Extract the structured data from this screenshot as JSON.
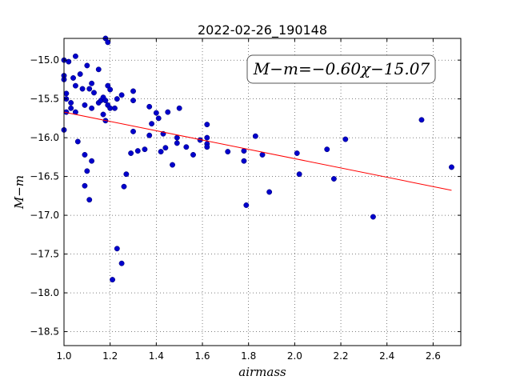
{
  "chart_data": {
    "type": "scatter",
    "title": "2022-02-26_190148",
    "xlabel": "airmass",
    "ylabel": "M−m",
    "xlim": [
      1.0,
      2.72
    ],
    "ylim": [
      -18.68,
      -14.72
    ],
    "y_inverted": false,
    "grid": true,
    "x_ticks": [
      1.0,
      1.2,
      1.4,
      1.6,
      1.8,
      2.0,
      2.2,
      2.4,
      2.6
    ],
    "x_tick_labels": [
      "1.0",
      "1.2",
      "1.4",
      "1.6",
      "1.8",
      "2.0",
      "2.2",
      "2.4",
      "2.6"
    ],
    "y_ticks": [
      -15.0,
      -15.5,
      -16.0,
      -16.5,
      -17.0,
      -17.5,
      -18.0,
      -18.5
    ],
    "y_tick_labels": [
      "−15.0",
      "−15.5",
      "−16.0",
      "−16.5",
      "−17.0",
      "−17.5",
      "−18.0",
      "−18.5"
    ],
    "annotation": "M−m=−0.60χ−15.07",
    "fit": {
      "slope": -0.6,
      "intercept": -15.07,
      "x_range": [
        1.0,
        2.68
      ],
      "color": "#ff0000"
    },
    "point_color": "#0000cc",
    "points": [
      [
        1.0,
        -15.0
      ],
      [
        1.0,
        -15.2
      ],
      [
        1.0,
        -15.25
      ],
      [
        1.0,
        -15.9
      ],
      [
        1.01,
        -15.43
      ],
      [
        1.01,
        -15.5
      ],
      [
        1.01,
        -15.67
      ],
      [
        1.02,
        -15.02
      ],
      [
        1.03,
        -15.55
      ],
      [
        1.03,
        -15.62
      ],
      [
        1.04,
        -15.23
      ],
      [
        1.05,
        -14.95
      ],
      [
        1.05,
        -15.33
      ],
      [
        1.05,
        -15.67
      ],
      [
        1.06,
        -16.05
      ],
      [
        1.07,
        -15.18
      ],
      [
        1.08,
        -15.37
      ],
      [
        1.09,
        -15.58
      ],
      [
        1.09,
        -16.62
      ],
      [
        1.09,
        -16.22
      ],
      [
        1.1,
        -15.07
      ],
      [
        1.1,
        -16.43
      ],
      [
        1.11,
        -15.37
      ],
      [
        1.11,
        -16.8
      ],
      [
        1.12,
        -15.3
      ],
      [
        1.12,
        -15.62
      ],
      [
        1.12,
        -16.3
      ],
      [
        1.13,
        -15.42
      ],
      [
        1.15,
        -15.12
      ],
      [
        1.15,
        -15.55
      ],
      [
        1.16,
        -15.52
      ],
      [
        1.17,
        -15.48
      ],
      [
        1.17,
        -15.7
      ],
      [
        1.18,
        -15.52
      ],
      [
        1.18,
        -15.78
      ],
      [
        1.18,
        -14.72
      ],
      [
        1.19,
        -14.77
      ],
      [
        1.19,
        -15.33
      ],
      [
        1.19,
        -15.58
      ],
      [
        1.2,
        -15.38
      ],
      [
        1.2,
        -15.62
      ],
      [
        1.21,
        -17.83
      ],
      [
        1.22,
        -15.62
      ],
      [
        1.23,
        -17.43
      ],
      [
        1.23,
        -15.5
      ],
      [
        1.25,
        -17.62
      ],
      [
        1.25,
        -15.45
      ],
      [
        1.26,
        -16.63
      ],
      [
        1.27,
        -16.47
      ],
      [
        1.29,
        -16.2
      ],
      [
        1.3,
        -15.4
      ],
      [
        1.3,
        -15.52
      ],
      [
        1.3,
        -15.92
      ],
      [
        1.32,
        -16.17
      ],
      [
        1.35,
        -16.15
      ],
      [
        1.37,
        -15.6
      ],
      [
        1.37,
        -15.97
      ],
      [
        1.38,
        -15.82
      ],
      [
        1.4,
        -15.68
      ],
      [
        1.41,
        -15.75
      ],
      [
        1.42,
        -16.18
      ],
      [
        1.43,
        -15.95
      ],
      [
        1.44,
        -16.13
      ],
      [
        1.45,
        -15.67
      ],
      [
        1.47,
        -16.35
      ],
      [
        1.49,
        -16.0
      ],
      [
        1.49,
        -16.07
      ],
      [
        1.5,
        -15.62
      ],
      [
        1.53,
        -16.12
      ],
      [
        1.56,
        -16.22
      ],
      [
        1.59,
        -16.03
      ],
      [
        1.62,
        -15.83
      ],
      [
        1.62,
        -16.0
      ],
      [
        1.62,
        -16.08
      ],
      [
        1.62,
        -16.12
      ],
      [
        1.71,
        -16.18
      ],
      [
        1.78,
        -16.3
      ],
      [
        1.78,
        -16.17
      ],
      [
        1.79,
        -16.87
      ],
      [
        1.83,
        -15.98
      ],
      [
        1.86,
        -16.22
      ],
      [
        1.89,
        -16.7
      ],
      [
        2.01,
        -16.2
      ],
      [
        2.02,
        -16.47
      ],
      [
        2.14,
        -16.15
      ],
      [
        2.17,
        -16.53
      ],
      [
        2.22,
        -16.02
      ],
      [
        2.34,
        -17.02
      ],
      [
        2.55,
        -15.77
      ],
      [
        2.68,
        -16.38
      ]
    ]
  }
}
